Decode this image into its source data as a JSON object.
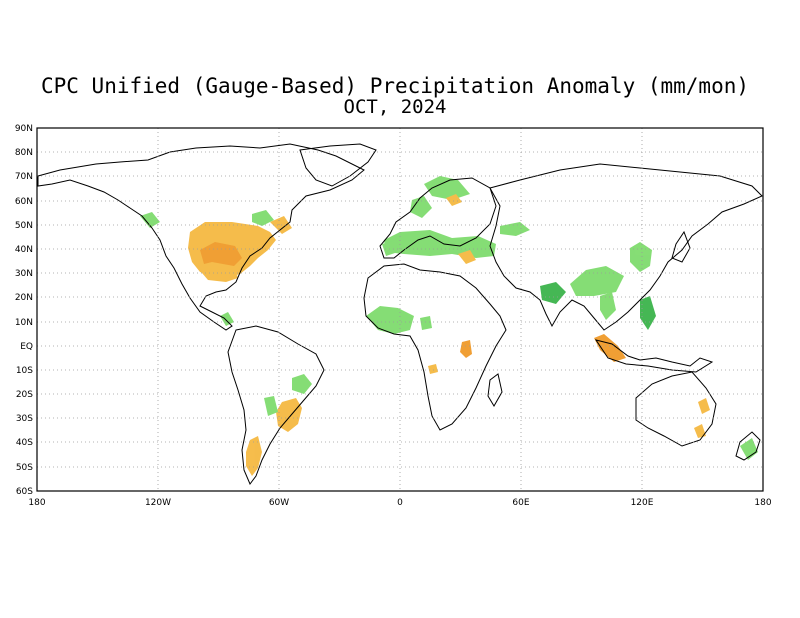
{
  "map": {
    "title": "CPC Unified (Gauge-Based) Precipitation Anomaly (mm/mon)",
    "subtitle": "OCT, 2024",
    "lat_labels": [
      "90N",
      "80N",
      "70N",
      "60N",
      "50N",
      "40N",
      "30N",
      "20N",
      "10N",
      "EQ",
      "10S",
      "20S",
      "30S",
      "40S",
      "50S",
      "60S"
    ],
    "lon_labels": [
      "180",
      "120W",
      "60W",
      "0",
      "60E",
      "120E",
      "180"
    ],
    "lon_range": [
      -180,
      180
    ],
    "lat_range": [
      -60,
      90
    ],
    "grid": "dotted",
    "colors": {
      "wet": "#7fdc6e",
      "wet_strong": "#3cb44b",
      "dry": "#f5b942",
      "dry_strong": "#f09a2a",
      "coast": "#000000"
    }
  }
}
